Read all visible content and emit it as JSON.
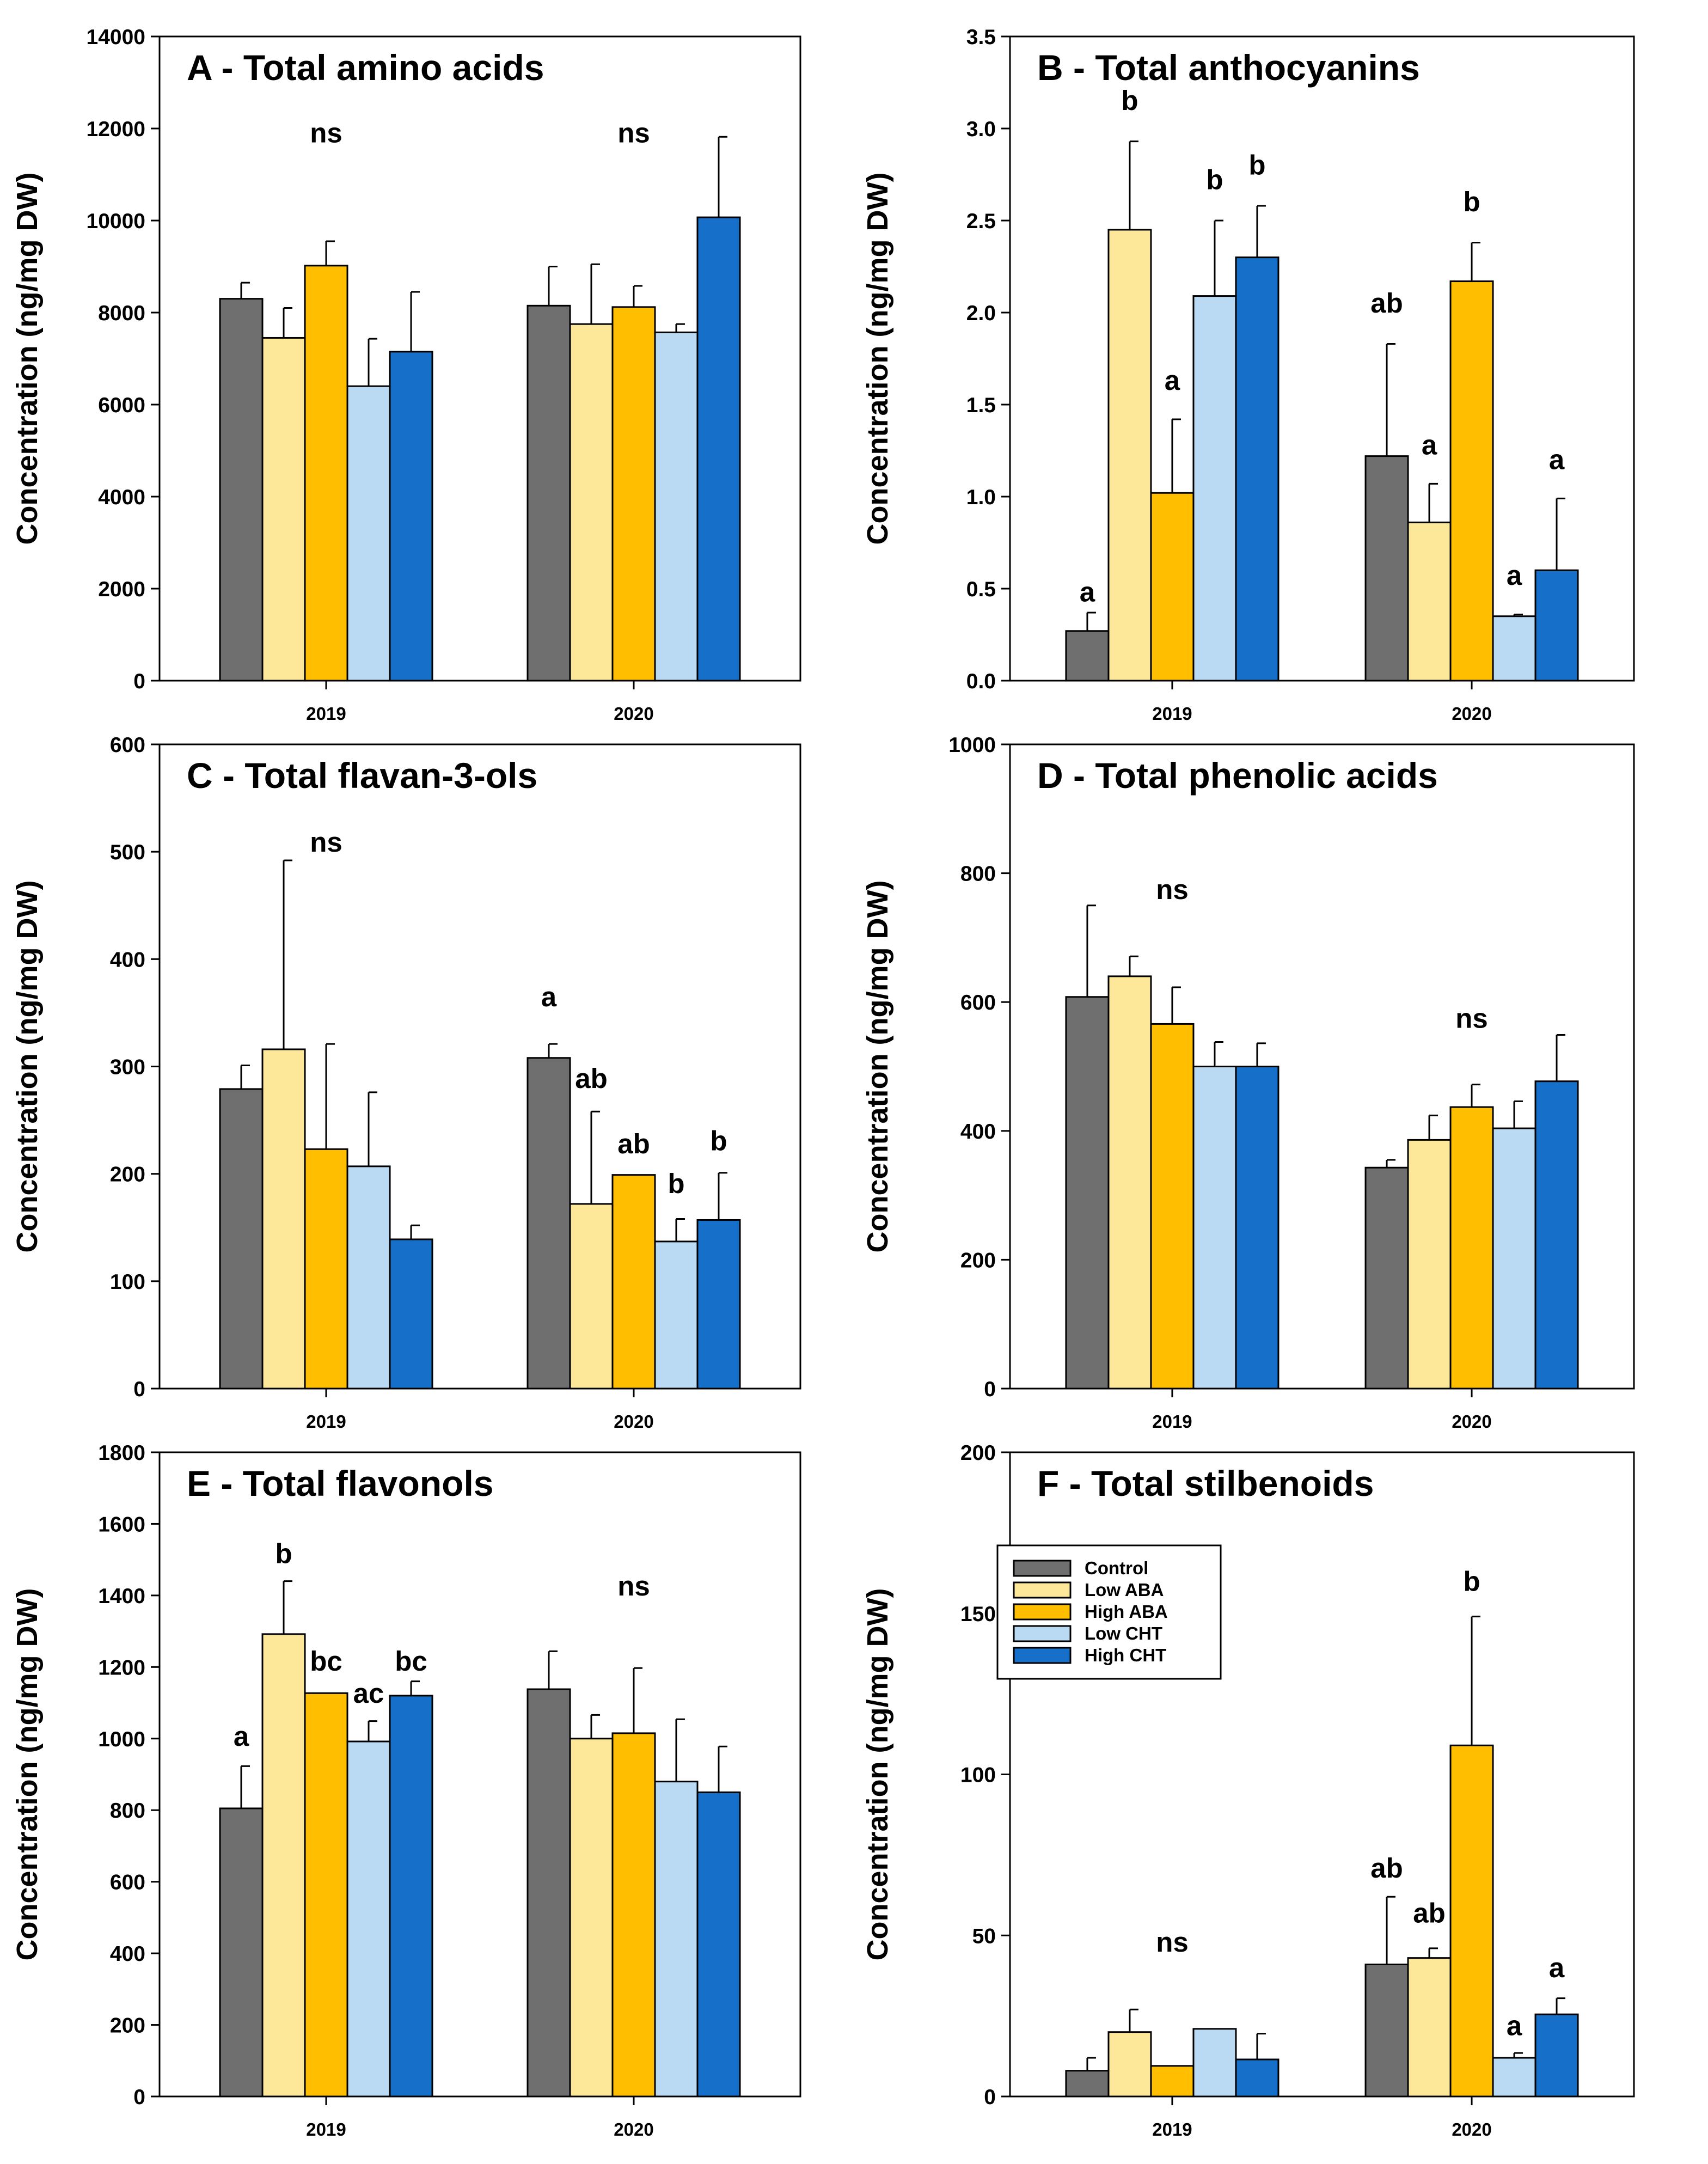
{
  "colors": {
    "Control": "#6f6f6f",
    "Low ABA": "#fde89a",
    "High ABA": "#ffbf00",
    "Low CHT": "#b9daf2",
    "High CHT": "#1670c9"
  },
  "legend": {
    "entries": [
      "Control",
      "Low ABA",
      "High ABA",
      "Low CHT",
      "High CHT"
    ]
  },
  "chart_data": [
    {
      "type": "bar",
      "panel": "A",
      "title": "A - Total amino acids",
      "ylabel": "Concentration (ng/mg DW)",
      "categories": [
        "2019",
        "2020"
      ],
      "ylim": [
        0,
        14000
      ],
      "yticks": [
        "0",
        "2000",
        "4000",
        "6000",
        "8000",
        "10000",
        "12000",
        "14000"
      ],
      "series": [
        {
          "name": "Control",
          "values": [
            8300,
            8150
          ],
          "errors": [
            350,
            850
          ]
        },
        {
          "name": "Low ABA",
          "values": [
            7450,
            7750
          ],
          "errors": [
            650,
            1300
          ]
        },
        {
          "name": "High ABA",
          "values": [
            9020,
            8120
          ],
          "errors": [
            530,
            460
          ]
        },
        {
          "name": "Low CHT",
          "values": [
            6400,
            7570
          ],
          "errors": [
            1030,
            180
          ]
        },
        {
          "name": "High CHT",
          "values": [
            7150,
            10070
          ],
          "errors": [
            1300,
            1750
          ]
        }
      ],
      "significance": [
        {
          "category": "2019",
          "bar": 2,
          "label": "ns",
          "value": 11700
        },
        {
          "category": "2020",
          "bar": 2,
          "label": "ns",
          "value": 11700
        }
      ]
    },
    {
      "type": "bar",
      "panel": "B",
      "title": "B - Total anthocyanins",
      "ylabel": "Concentration (ng/mg DW)",
      "categories": [
        "2019",
        "2020"
      ],
      "ylim": [
        0,
        3.5
      ],
      "yticks": [
        "0.0",
        "0.5",
        "1.0",
        "1.5",
        "2.0",
        "2.5",
        "3.0",
        "3.5"
      ],
      "series": [
        {
          "name": "Control",
          "values": [
            0.27,
            1.22
          ],
          "errors": [
            0.1,
            0.61
          ]
        },
        {
          "name": "Low ABA",
          "values": [
            2.45,
            0.86
          ],
          "errors": [
            0.48,
            0.21
          ]
        },
        {
          "name": "High ABA",
          "values": [
            1.02,
            2.17
          ],
          "errors": [
            0.4,
            0.21
          ]
        },
        {
          "name": "Low CHT",
          "values": [
            2.09,
            0.35
          ],
          "errors": [
            0.41,
            0.01
          ]
        },
        {
          "name": "High CHT",
          "values": [
            2.3,
            0.6
          ],
          "errors": [
            0.28,
            0.39
          ]
        }
      ],
      "significance": [
        {
          "category": "2019",
          "bar": 0,
          "label": "a",
          "value": 0.43
        },
        {
          "category": "2019",
          "bar": 1,
          "label": "b",
          "value": 3.1
        },
        {
          "category": "2019",
          "bar": 2,
          "label": "a",
          "value": 1.58
        },
        {
          "category": "2019",
          "bar": 3,
          "label": "b",
          "value": 2.67
        },
        {
          "category": "2019",
          "bar": 4,
          "label": "b",
          "value": 2.75
        },
        {
          "category": "2020",
          "bar": 0,
          "label": "ab",
          "value": 2.0
        },
        {
          "category": "2020",
          "bar": 1,
          "label": "a",
          "value": 1.23
        },
        {
          "category": "2020",
          "bar": 2,
          "label": "b",
          "value": 2.55
        },
        {
          "category": "2020",
          "bar": 3,
          "label": "a",
          "value": 0.52
        },
        {
          "category": "2020",
          "bar": 4,
          "label": "a",
          "value": 1.15
        }
      ]
    },
    {
      "type": "bar",
      "panel": "C",
      "title": "C - Total flavan-3-ols",
      "ylabel": "Concentration (ng/mg DW)",
      "categories": [
        "2019",
        "2020"
      ],
      "ylim": [
        0,
        600
      ],
      "yticks": [
        "0",
        "100",
        "200",
        "300",
        "400",
        "500",
        "600"
      ],
      "series": [
        {
          "name": "Control",
          "values": [
            279,
            308
          ],
          "errors": [
            22,
            13
          ]
        },
        {
          "name": "Low ABA",
          "values": [
            316,
            172
          ],
          "errors": [
            176,
            86
          ]
        },
        {
          "name": "High ABA",
          "values": [
            223,
            199
          ],
          "errors": [
            98,
            0
          ]
        },
        {
          "name": "Low CHT",
          "values": [
            207,
            137
          ],
          "errors": [
            69,
            21
          ]
        },
        {
          "name": "High CHT",
          "values": [
            139,
            157
          ],
          "errors": [
            13,
            44
          ]
        }
      ],
      "significance": [
        {
          "category": "2019",
          "bar": 2,
          "label": "ns",
          "value": 500
        },
        {
          "category": "2020",
          "bar": 0,
          "label": "a",
          "value": 356
        },
        {
          "category": "2020",
          "bar": 1,
          "label": "ab",
          "value": 280
        },
        {
          "category": "2020",
          "bar": 2,
          "label": "ab",
          "value": 219
        },
        {
          "category": "2020",
          "bar": 3,
          "label": "b",
          "value": 182
        },
        {
          "category": "2020",
          "bar": 4,
          "label": "b",
          "value": 222
        }
      ]
    },
    {
      "type": "bar",
      "panel": "D",
      "title": "D - Total phenolic acids",
      "ylabel": "Concentration (ng/mg DW)",
      "categories": [
        "2019",
        "2020"
      ],
      "ylim": [
        0,
        1000
      ],
      "yticks": [
        "0",
        "200",
        "400",
        "600",
        "800",
        "1000"
      ],
      "series": [
        {
          "name": "Control",
          "values": [
            608,
            343
          ],
          "errors": [
            142,
            12
          ]
        },
        {
          "name": "Low ABA",
          "values": [
            640,
            386
          ],
          "errors": [
            31,
            38
          ]
        },
        {
          "name": "High ABA",
          "values": [
            566,
            437
          ],
          "errors": [
            57,
            35
          ]
        },
        {
          "name": "Low CHT",
          "values": [
            500,
            404
          ],
          "errors": [
            38,
            42
          ]
        },
        {
          "name": "High CHT",
          "values": [
            500,
            477
          ],
          "errors": [
            36,
            72
          ]
        }
      ],
      "significance": [
        {
          "category": "2019",
          "bar": 2,
          "label": "ns",
          "value": 760
        },
        {
          "category": "2020",
          "bar": 2,
          "label": "ns",
          "value": 560
        }
      ]
    },
    {
      "type": "bar",
      "panel": "E",
      "title": "E - Total flavonols",
      "ylabel": "Concentration (ng/mg DW)",
      "categories": [
        "2019",
        "2020"
      ],
      "ylim": [
        0,
        1800
      ],
      "yticks": [
        "0",
        "200",
        "400",
        "600",
        "800",
        "1000",
        "1200",
        "1400",
        "1600",
        "1800"
      ],
      "series": [
        {
          "name": "Control",
          "values": [
            805,
            1138
          ],
          "errors": [
            118,
            106
          ]
        },
        {
          "name": "Low ABA",
          "values": [
            1292,
            1000
          ],
          "errors": [
            148,
            66
          ]
        },
        {
          "name": "High ABA",
          "values": [
            1127,
            1015
          ],
          "errors": [
            0,
            182
          ]
        },
        {
          "name": "Low CHT",
          "values": [
            992,
            880
          ],
          "errors": [
            57,
            174
          ]
        },
        {
          "name": "High CHT",
          "values": [
            1120,
            850
          ],
          "errors": [
            40,
            128
          ]
        }
      ],
      "significance": [
        {
          "category": "2019",
          "bar": 0,
          "label": "a",
          "value": 980
        },
        {
          "category": "2019",
          "bar": 1,
          "label": "b",
          "value": 1490
        },
        {
          "category": "2019",
          "bar": 2,
          "label": "bc",
          "value": 1190
        },
        {
          "category": "2019",
          "bar": 3,
          "label": "ac",
          "value": 1100
        },
        {
          "category": "2019",
          "bar": 4,
          "label": "bc",
          "value": 1190
        },
        {
          "category": "2020",
          "bar": 2,
          "label": "ns",
          "value": 1400
        }
      ]
    },
    {
      "type": "bar",
      "panel": "F",
      "title": "F - Total stilbenoids",
      "ylabel": "Concentration (ng/mg DW)",
      "categories": [
        "2019",
        "2020"
      ],
      "ylim": [
        0,
        200
      ],
      "yticks": [
        "0",
        "50",
        "100",
        "150",
        "200"
      ],
      "series": [
        {
          "name": "Control",
          "values": [
            8,
            41
          ],
          "errors": [
            4,
            21
          ]
        },
        {
          "name": "Low ABA",
          "values": [
            20,
            43
          ],
          "errors": [
            7,
            3
          ]
        },
        {
          "name": "High ABA",
          "values": [
            9.5,
            109
          ],
          "errors": [
            0,
            40
          ]
        },
        {
          "name": "Low CHT",
          "values": [
            21,
            12
          ],
          "errors": [
            0,
            1.5
          ]
        },
        {
          "name": "High CHT",
          "values": [
            11.5,
            25.5
          ],
          "errors": [
            8,
            5
          ]
        }
      ],
      "significance": [
        {
          "category": "2019",
          "bar": 2,
          "label": "ns",
          "value": 45
        },
        {
          "category": "2020",
          "bar": 0,
          "label": "ab",
          "value": 68
        },
        {
          "category": "2020",
          "bar": 1,
          "label": "ab",
          "value": 54
        },
        {
          "category": "2020",
          "bar": 2,
          "label": "b",
          "value": 157
        },
        {
          "category": "2020",
          "bar": 3,
          "label": "a",
          "value": 19
        },
        {
          "category": "2020",
          "bar": 4,
          "label": "a",
          "value": 37
        }
      ]
    }
  ]
}
